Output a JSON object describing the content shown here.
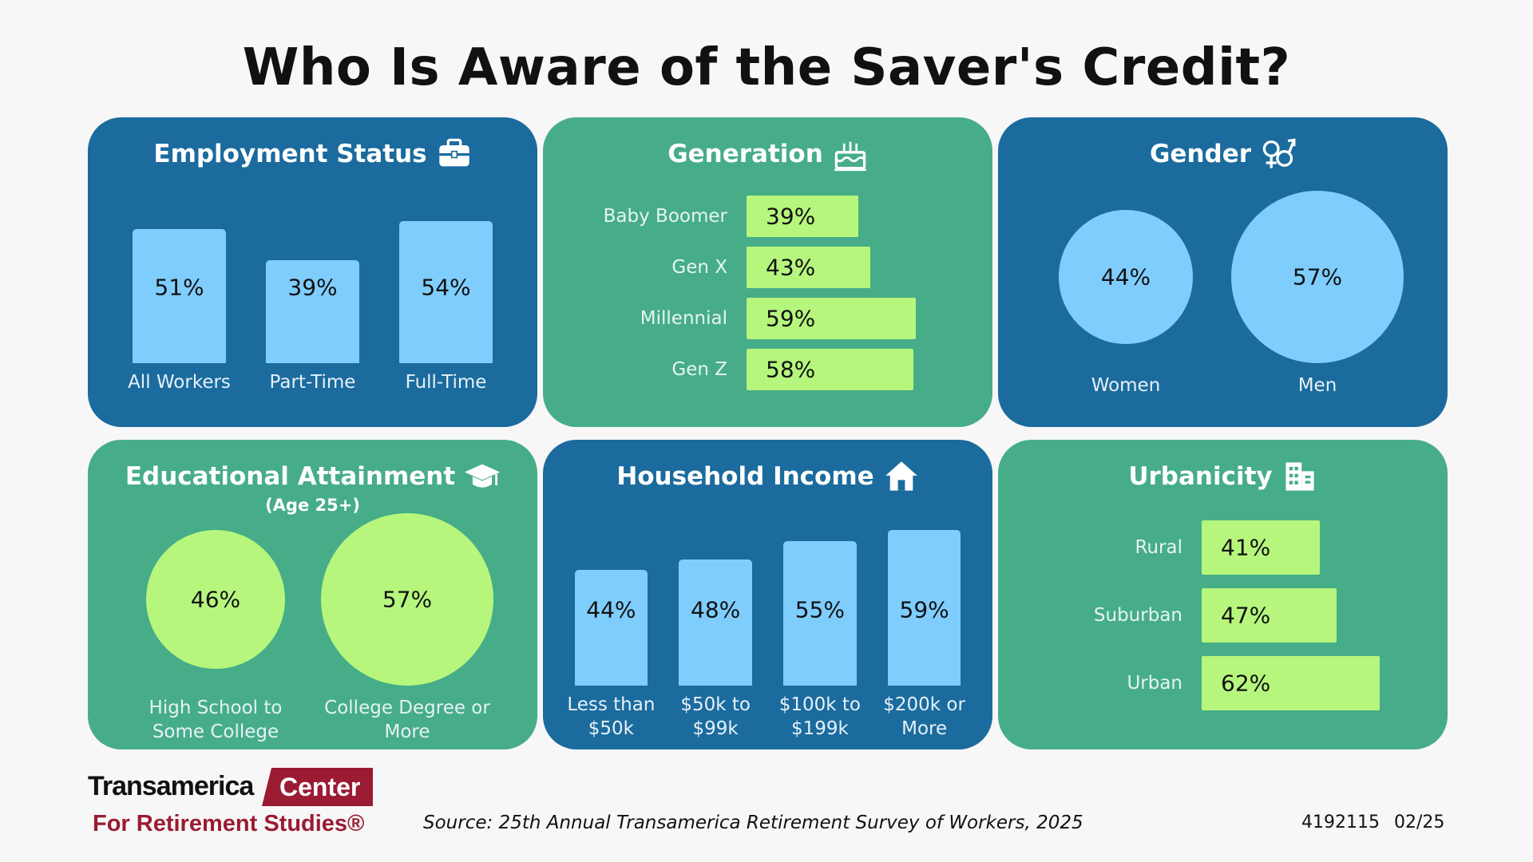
{
  "title": "Who Is Aware of the Saver's Credit?",
  "chart_data": [
    {
      "type": "bar",
      "title": "Employment Status",
      "categories": [
        "All Workers",
        "Part-Time",
        "Full-Time"
      ],
      "values": [
        51,
        39,
        54
      ],
      "value_labels": [
        "51%",
        "39%",
        "54%"
      ],
      "color": "#7fcdfd",
      "panel_color": "#1b6b9e"
    },
    {
      "type": "hbar",
      "title": "Generation",
      "categories": [
        "Baby Boomer",
        "Gen X",
        "Millennial",
        "Gen Z"
      ],
      "values": [
        39,
        43,
        59,
        58
      ],
      "value_labels": [
        "39%",
        "43%",
        "59%",
        "58%"
      ],
      "color": "#b6f67d",
      "panel_color": "#46ad88"
    },
    {
      "type": "bubble",
      "title": "Gender",
      "categories": [
        "Women",
        "Men"
      ],
      "values": [
        44,
        57
      ],
      "value_labels": [
        "44%",
        "57%"
      ],
      "color": "#7fcdfd",
      "panel_color": "#1b6b9e"
    },
    {
      "type": "bubble",
      "title": "Educational Attainment",
      "subtitle": "(Age 25+)",
      "categories": [
        "High School to Some College",
        "College Degree or More"
      ],
      "values": [
        46,
        57
      ],
      "value_labels": [
        "46%",
        "57%"
      ],
      "color": "#b6f67d",
      "panel_color": "#46ad88"
    },
    {
      "type": "bar",
      "title": "Household Income",
      "categories": [
        "Less than $50k",
        "$50k to $99k",
        "$100k to $199k",
        "$200k or More"
      ],
      "values": [
        44,
        48,
        55,
        59
      ],
      "value_labels": [
        "44%",
        "48%",
        "55%",
        "59%"
      ],
      "color": "#7fcdfd",
      "panel_color": "#1b6b9e"
    },
    {
      "type": "hbar",
      "title": "Urbanicity",
      "categories": [
        "Rural",
        "Suburban",
        "Urban"
      ],
      "values": [
        41,
        47,
        62
      ],
      "value_labels": [
        "41%",
        "47%",
        "62%"
      ],
      "color": "#b6f67d",
      "panel_color": "#46ad88"
    }
  ],
  "footer": {
    "logo_name": "Transamerica",
    "logo_highlight": "Center",
    "logo_line2": "For Retirement Studies®",
    "source": "Source: 25th Annual Transamerica Retirement Survey of Workers, 2025",
    "code": "4192115",
    "date": "02/25"
  }
}
